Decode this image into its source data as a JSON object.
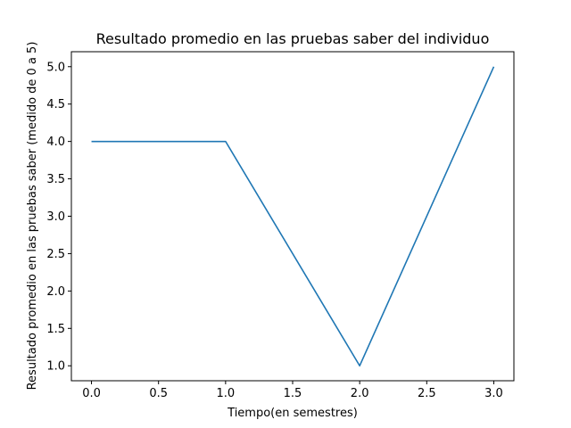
{
  "chart_data": {
    "type": "line",
    "title": "Resultado promedio en las pruebas saber del individuo",
    "xlabel": "Tiempo(en semestres)",
    "ylabel": "Resultado promedio en las pruebas saber (medido de 0 a 5)",
    "x": [
      0,
      1,
      2,
      3
    ],
    "series": [
      {
        "values": [
          4.0,
          4.0,
          1.0,
          5.0
        ],
        "color": "#1f77b4"
      }
    ],
    "xlim": [
      -0.15,
      3.15
    ],
    "ylim": [
      0.8,
      5.2
    ],
    "xticks": [
      0.0,
      0.5,
      1.0,
      1.5,
      2.0,
      2.5,
      3.0
    ],
    "xtick_labels": [
      "0.0",
      "0.5",
      "1.0",
      "1.5",
      "2.0",
      "2.5",
      "3.0"
    ],
    "yticks": [
      1.0,
      1.5,
      2.0,
      2.5,
      3.0,
      3.5,
      4.0,
      4.5,
      5.0
    ],
    "ytick_labels": [
      "1.0",
      "1.5",
      "2.0",
      "2.5",
      "3.0",
      "3.5",
      "4.0",
      "4.5",
      "5.0"
    ],
    "grid": false,
    "legend": "none"
  }
}
